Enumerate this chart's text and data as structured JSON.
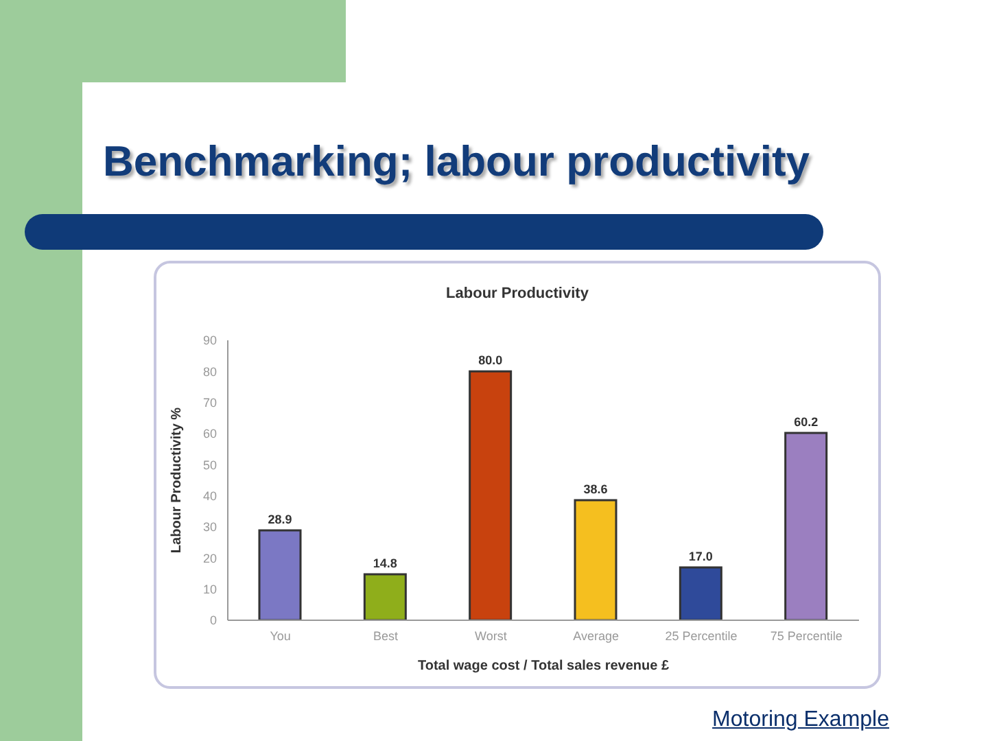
{
  "chart_data": {
    "type": "bar",
    "title": "Benchmarking; labour productivity",
    "subtitle": "Labour Productivity",
    "xlabel": "Total wage cost / Total sales revenue £",
    "ylabel": "Labour Productivity %",
    "categories": [
      "You",
      "Best",
      "Worst",
      "Average",
      "25 Percentile",
      "75 Percentile"
    ],
    "values": [
      28.9,
      14.8,
      80.0,
      38.6,
      17.0,
      60.2
    ],
    "colors": [
      "#7b78c4",
      "#8fae1b",
      "#c8420e",
      "#f5bf1f",
      "#2f4a9a",
      "#9b7fc0"
    ],
    "value_labels": [
      "28.9",
      "14.8",
      "80.0",
      "38.6",
      "17.0",
      "60.2"
    ],
    "ylim": [
      0,
      90
    ],
    "yticks": [
      0,
      10,
      20,
      30,
      40,
      50,
      60,
      70,
      80,
      90
    ],
    "grid": false,
    "annotations": [
      "Motoring Example"
    ]
  }
}
